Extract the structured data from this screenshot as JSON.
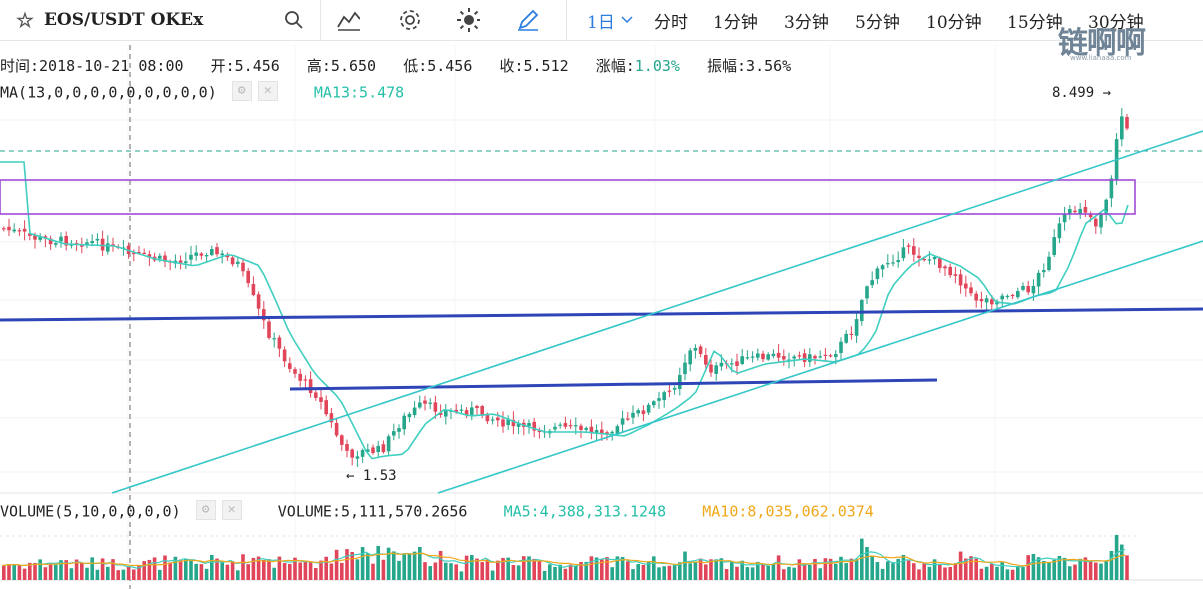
{
  "toolbar": {
    "symbol": "EOS/USDT  OKEx",
    "intervals": [
      "1日",
      "分时",
      "1分钟",
      "3分钟",
      "5分钟",
      "10分钟",
      "15分钟",
      "30分钟"
    ],
    "active_interval": "1日"
  },
  "watermark": {
    "logo": "链啊啊",
    "domain": "www.lianaaa.com"
  },
  "ohlc": {
    "time": "时间:2018-10-21 08:00",
    "open": "开:5.456",
    "high": "高:5.650",
    "low": "低:5.456",
    "close": "收:5.512",
    "change_label": "涨幅:",
    "change_value": "1.03%",
    "amplitude": "振幅:3.56%"
  },
  "ma": {
    "params": "MA(13,0,0,0,0,0,0,0,0,0)",
    "value": "MA13:5.478"
  },
  "annotations": {
    "high_label": "8.499 →",
    "low_label": "← 1.53"
  },
  "volume": {
    "params": "VOLUME(5,10,0,0,0,0)",
    "value": "VOLUME:5,111,570.2656",
    "ma5": "MA5:4,388,313.1248",
    "ma10": "MA10:8,035,062.0374"
  },
  "colors": {
    "up": "#26a68b",
    "down": "#e0455a",
    "ma": "#3fcfc0",
    "trend": "#2e45b8",
    "box": "#a24bd6",
    "channel": "#34c6c8"
  }
}
